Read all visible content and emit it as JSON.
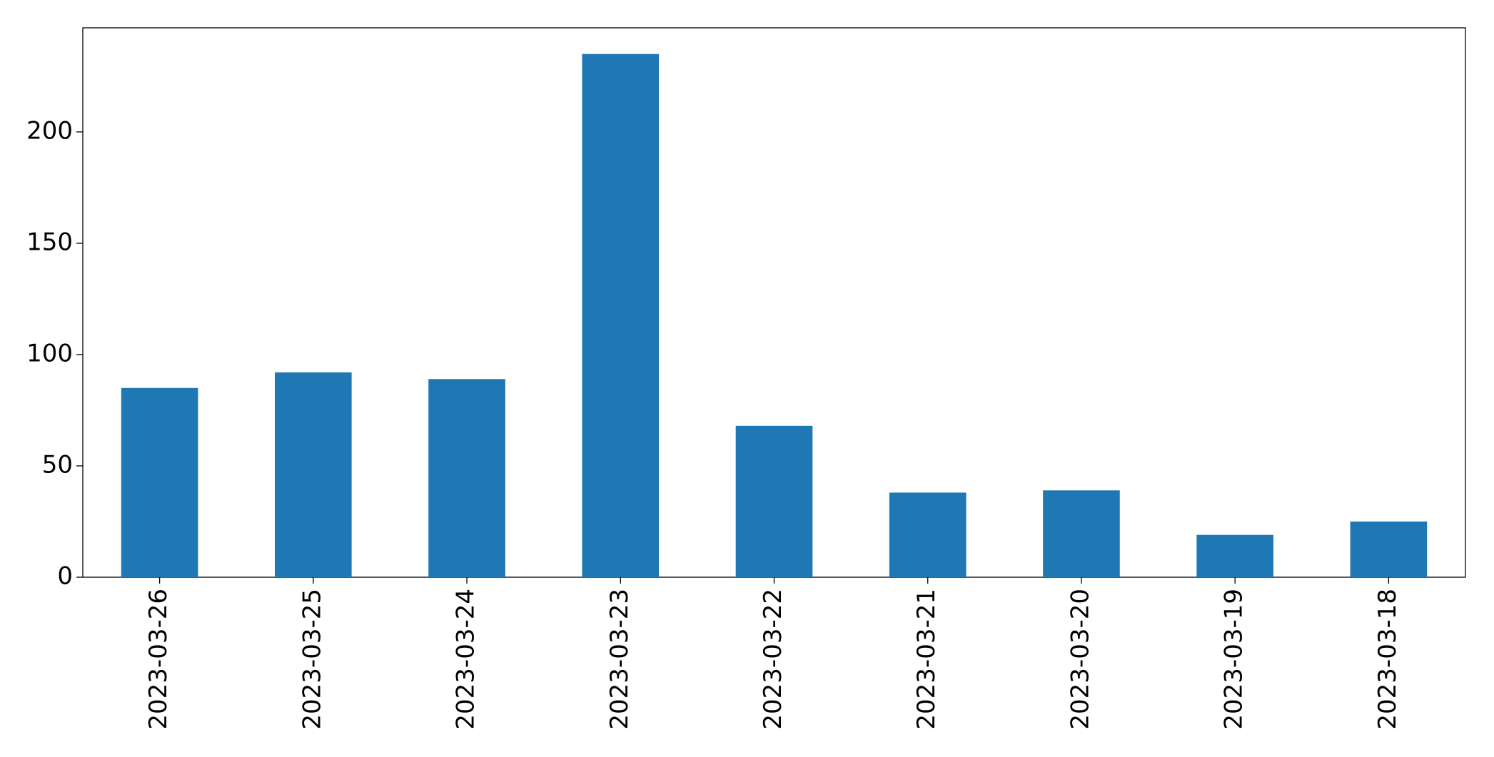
{
  "chart_data": {
    "type": "bar",
    "categories": [
      "2023-03-26",
      "2023-03-25",
      "2023-03-24",
      "2023-03-23",
      "2023-03-22",
      "2023-03-21",
      "2023-03-20",
      "2023-03-19",
      "2023-03-18"
    ],
    "values": [
      85,
      92,
      89,
      235,
      68,
      38,
      39,
      19,
      25
    ],
    "color": "#1f77b4",
    "ylim": [
      0,
      246.75
    ],
    "yticks": [
      0,
      50,
      100,
      150,
      200
    ],
    "grid": false
  }
}
